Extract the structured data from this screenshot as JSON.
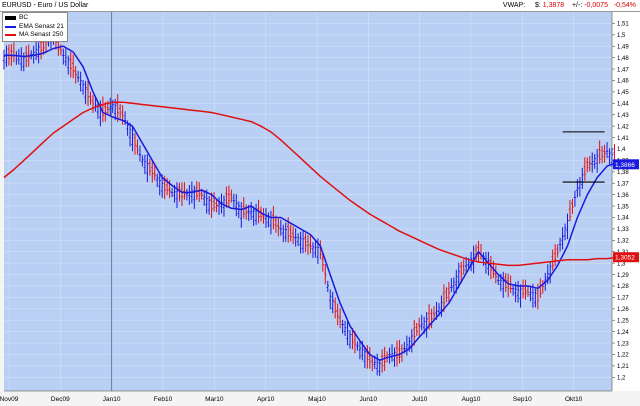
{
  "header": {
    "symbol": "EURUSD - Euro / US Dollar",
    "vwap_label": "VWAP:",
    "price_label": "$:",
    "price": "1,3878",
    "change_label": "+/-:",
    "change": "-0,0075",
    "change_pct": "-0,54%"
  },
  "legend": [
    {
      "name": "BC",
      "color": "#000000"
    },
    {
      "name": "EMA Senast 21",
      "color": "#1a1adc"
    },
    {
      "name": "MA Senast 250",
      "color": "#e01010"
    }
  ],
  "colors": {
    "plot_bg": "#b9cff4",
    "up_bar": "#1a1adc",
    "down_bar": "#e01010",
    "ema": "#1a1adc",
    "ma": "#e01010",
    "level": "#000000"
  },
  "chart_data": {
    "type": "line",
    "title": "EURUSD - Euro / US Dollar",
    "xlabel": "",
    "ylabel": "",
    "x_tick_labels": [
      "Nov09",
      "Dec09",
      "Jan10",
      "Feb10",
      "Mar10",
      "Apr10",
      "Maj10",
      "Jun10",
      "Jul10",
      "Aug10",
      "Sep10",
      "Okt10"
    ],
    "y_tick_labels": [
      "1,2",
      "1,21",
      "1,22",
      "1,23",
      "1,24",
      "1,25",
      "1,26",
      "1,27",
      "1,28",
      "1,29",
      "1,3",
      "1,31",
      "1,32",
      "1,33",
      "1,34",
      "1,35",
      "1,36",
      "1,37",
      "1,38",
      "1,39",
      "1,4",
      "1,41",
      "1,42",
      "1,43",
      "1,44",
      "1,45",
      "1,46",
      "1,47",
      "1,48",
      "1,49",
      "1,5",
      "1,51"
    ],
    "ylim": [
      1.188,
      1.52
    ],
    "log_scale": false,
    "grid": true,
    "legend_position": "top-left",
    "price_x": [
      0,
      4,
      8,
      12,
      16,
      20,
      24,
      28,
      32,
      36,
      40,
      44,
      48,
      52,
      56,
      60,
      64,
      68,
      72,
      76,
      80,
      84,
      88,
      92,
      96,
      100,
      104,
      108,
      112,
      116,
      120,
      124,
      128,
      132,
      136,
      140,
      144,
      148,
      152,
      156,
      160,
      164,
      168,
      172,
      176,
      180,
      184,
      188,
      192,
      196,
      200,
      204,
      208,
      212,
      216,
      220,
      224,
      228,
      232,
      236,
      240,
      244,
      248
    ],
    "price_close": [
      1.48,
      1.483,
      1.478,
      1.484,
      1.49,
      1.5,
      1.482,
      1.47,
      1.455,
      1.44,
      1.432,
      1.438,
      1.43,
      1.41,
      1.39,
      1.38,
      1.368,
      1.362,
      1.36,
      1.362,
      1.36,
      1.35,
      1.352,
      1.358,
      1.345,
      1.345,
      1.342,
      1.338,
      1.33,
      1.325,
      1.32,
      1.315,
      1.31,
      1.27,
      1.25,
      1.235,
      1.225,
      1.215,
      1.21,
      1.22,
      1.22,
      1.23,
      1.245,
      1.25,
      1.26,
      1.275,
      1.29,
      1.3,
      1.31,
      1.3,
      1.285,
      1.28,
      1.275,
      1.275,
      1.27,
      1.29,
      1.31,
      1.335,
      1.365,
      1.385,
      1.392,
      1.398,
      1.388
    ],
    "series": [
      {
        "name": "EMA Senast 21",
        "x": [
          0,
          4,
          8,
          12,
          16,
          20,
          24,
          28,
          32,
          36,
          40,
          44,
          48,
          52,
          56,
          60,
          64,
          68,
          72,
          76,
          80,
          84,
          88,
          92,
          96,
          100,
          104,
          108,
          112,
          116,
          120,
          124,
          128,
          132,
          136,
          140,
          144,
          148,
          152,
          156,
          160,
          164,
          168,
          172,
          176,
          180,
          184,
          188,
          192,
          196,
          200,
          204,
          208,
          212,
          216,
          220,
          224,
          228,
          232,
          236,
          240,
          244,
          248
        ],
        "values": [
          1.482,
          1.482,
          1.481,
          1.482,
          1.484,
          1.488,
          1.49,
          1.485,
          1.472,
          1.45,
          1.432,
          1.428,
          1.425,
          1.42,
          1.405,
          1.39,
          1.375,
          1.368,
          1.362,
          1.362,
          1.364,
          1.36,
          1.352,
          1.348,
          1.347,
          1.35,
          1.344,
          1.34,
          1.34,
          1.335,
          1.33,
          1.325,
          1.315,
          1.29,
          1.265,
          1.245,
          1.232,
          1.22,
          1.215,
          1.218,
          1.22,
          1.225,
          1.235,
          1.245,
          1.255,
          1.265,
          1.28,
          1.295,
          1.31,
          1.3,
          1.29,
          1.282,
          1.28,
          1.28,
          1.278,
          1.285,
          1.298,
          1.315,
          1.34,
          1.36,
          1.375,
          1.385,
          1.388
        ]
      },
      {
        "name": "MA Senast 250",
        "x": [
          0,
          4,
          8,
          12,
          16,
          20,
          24,
          28,
          32,
          36,
          40,
          44,
          48,
          52,
          56,
          60,
          64,
          68,
          72,
          76,
          80,
          84,
          88,
          92,
          96,
          100,
          104,
          108,
          112,
          116,
          120,
          124,
          128,
          132,
          136,
          140,
          144,
          148,
          152,
          156,
          160,
          164,
          168,
          172,
          176,
          180,
          184,
          188,
          192,
          196,
          200,
          204,
          208,
          212,
          216,
          220,
          224,
          228,
          232,
          236,
          240,
          244,
          248
        ],
        "values": [
          1.375,
          1.382,
          1.39,
          1.398,
          1.406,
          1.414,
          1.42,
          1.426,
          1.432,
          1.436,
          1.439,
          1.441,
          1.441,
          1.44,
          1.439,
          1.438,
          1.437,
          1.436,
          1.435,
          1.434,
          1.433,
          1.432,
          1.43,
          1.428,
          1.426,
          1.424,
          1.42,
          1.415,
          1.408,
          1.4,
          1.392,
          1.384,
          1.376,
          1.369,
          1.362,
          1.355,
          1.349,
          1.343,
          1.338,
          1.333,
          1.328,
          1.324,
          1.32,
          1.316,
          1.312,
          1.309,
          1.306,
          1.303,
          1.301,
          1.3,
          1.299,
          1.298,
          1.298,
          1.299,
          1.3,
          1.301,
          1.302,
          1.303,
          1.303,
          1.303,
          1.304,
          1.304,
          1.305
        ]
      }
    ],
    "levels": [
      1.415,
      1.371
    ],
    "value_tags": [
      {
        "value": "1,3866",
        "y": 1.3866,
        "color": "#1a1adc"
      },
      {
        "value": "1,3052",
        "y": 1.3052,
        "color": "#e01010"
      }
    ]
  }
}
